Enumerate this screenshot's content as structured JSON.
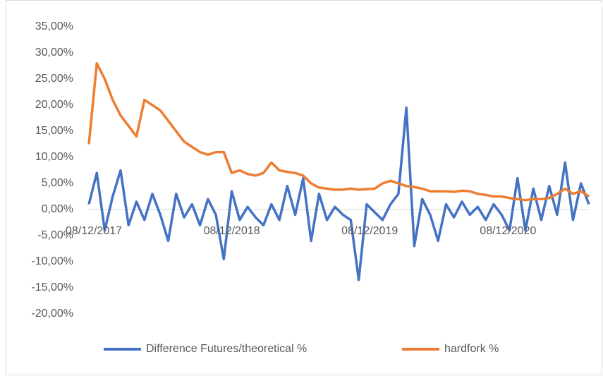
{
  "chart_data": {
    "type": "line",
    "x": [
      "08/12/2017",
      "29/12/2017",
      "19/01/2018",
      "09/02/2018",
      "02/03/2018",
      "23/03/2018",
      "13/04/2018",
      "04/05/2018",
      "25/05/2018",
      "15/06/2018",
      "06/07/2018",
      "27/07/2018",
      "17/08/2018",
      "07/09/2018",
      "28/09/2018",
      "19/10/2018",
      "09/11/2018",
      "30/11/2018",
      "21/12/2018",
      "11/01/2019",
      "01/02/2019",
      "22/02/2019",
      "15/03/2019",
      "05/04/2019",
      "26/04/2019",
      "17/05/2019",
      "07/06/2019",
      "28/06/2019",
      "19/07/2019",
      "09/08/2019",
      "30/08/2019",
      "20/09/2019",
      "11/10/2019",
      "01/11/2019",
      "22/11/2019",
      "13/12/2019",
      "03/01/2020",
      "24/01/2020",
      "14/02/2020",
      "06/03/2020",
      "27/03/2020",
      "17/04/2020",
      "08/05/2020",
      "29/05/2020",
      "19/06/2020",
      "10/07/2020",
      "31/07/2020",
      "21/08/2020",
      "11/09/2020",
      "02/10/2020",
      "23/10/2020",
      "13/11/2020",
      "04/12/2020",
      "25/12/2020",
      "15/01/2021",
      "05/02/2021",
      "26/02/2021",
      "19/03/2021",
      "09/04/2021",
      "30/04/2021",
      "21/05/2021",
      "11/06/2021",
      "02/07/2021",
      "23/07/2021"
    ],
    "series": [
      {
        "name": "Difference Futures/theoretical %",
        "color": "#4472c4",
        "values": [
          1,
          7,
          -4,
          2.5,
          7.5,
          -3,
          1.5,
          -2,
          3,
          -1,
          -6,
          3,
          -1.5,
          1,
          -3,
          2,
          -1,
          -9.5,
          3.5,
          -2,
          0.5,
          -1.5,
          -3,
          1,
          -2,
          4.5,
          -1,
          6,
          -6,
          3,
          -2,
          0.5,
          -1,
          -2,
          -13.5,
          1,
          -0.5,
          -2,
          1,
          3,
          19.5,
          -7,
          2,
          -1,
          -6,
          1,
          -1.5,
          1.5,
          -1,
          0.5,
          -2,
          1,
          -1,
          -4,
          6,
          -4,
          4,
          -2,
          4.5,
          -1,
          9,
          -2,
          5,
          1
        ]
      },
      {
        "name": "hardfork %",
        "color": "#ed7d31",
        "values": [
          12.5,
          28,
          25,
          21,
          18,
          16,
          14,
          21,
          20,
          19,
          17,
          15,
          13,
          12,
          11,
          10.5,
          11,
          11,
          7,
          7.5,
          6.8,
          6.5,
          7,
          9,
          7.5,
          7.2,
          7,
          6.5,
          5,
          4.2,
          4,
          3.8,
          3.8,
          4,
          3.8,
          3.9,
          4,
          5,
          5.5,
          5,
          4.5,
          4.3,
          4,
          3.5,
          3.5,
          3.5,
          3.4,
          3.6,
          3.5,
          3,
          2.8,
          2.5,
          2.5,
          2.2,
          2,
          1.8,
          2,
          2,
          2.2,
          3,
          4,
          3,
          3.5,
          2.5
        ]
      }
    ],
    "xlim": [
      "08/12/2017",
      "23/07/2021"
    ],
    "xticks": [
      "08/12/2017",
      "08/12/2018",
      "08/12/2019",
      "08/12/2020"
    ],
    "ylim": [
      -20,
      35
    ],
    "yticks": [
      {
        "value": -20,
        "label": "-20,00%"
      },
      {
        "value": -15,
        "label": "-15,00%"
      },
      {
        "value": -10,
        "label": "-10,00%"
      },
      {
        "value": -5,
        "label": "-5,00%"
      },
      {
        "value": 0,
        "label": "0,00%"
      },
      {
        "value": 5,
        "label": "5,00%"
      },
      {
        "value": 10,
        "label": "10,00%"
      },
      {
        "value": 15,
        "label": "15,00%"
      },
      {
        "value": 20,
        "label": "20,00%"
      },
      {
        "value": 25,
        "label": "25,00%"
      },
      {
        "value": 30,
        "label": "30,00%"
      },
      {
        "value": 35,
        "label": "35,00%"
      }
    ],
    "grid": false,
    "legend": "bottom"
  }
}
